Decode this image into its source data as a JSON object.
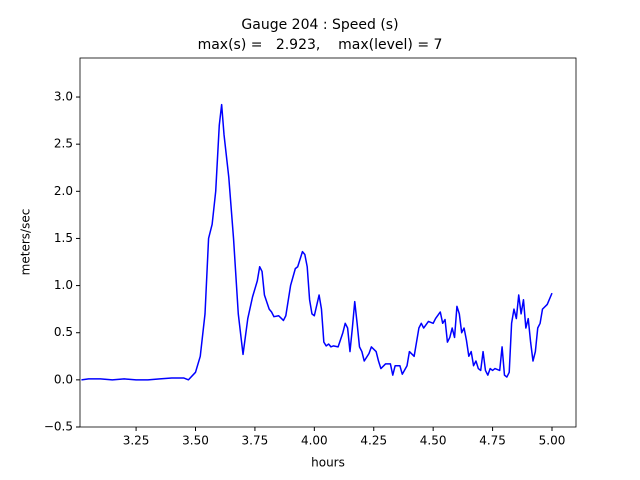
{
  "chart_data": {
    "type": "line",
    "title": "Gauge 204 : Speed (s)",
    "subtitle": "max(s) =   2.923,    max(level) = 7",
    "x_label": "hours",
    "y_label": "meters/sec",
    "xlim": [
      3.014,
      5.101
    ],
    "ylim": [
      -0.5,
      3.414
    ],
    "xticks": [
      {
        "value": 3.25,
        "label": "3.25"
      },
      {
        "value": 3.5,
        "label": "3.50"
      },
      {
        "value": 3.75,
        "label": "3.75"
      },
      {
        "value": 4,
        "label": "4.00"
      },
      {
        "value": 4.25,
        "label": "4.25"
      },
      {
        "value": 4.5,
        "label": "4.50"
      },
      {
        "value": 4.75,
        "label": "4.75"
      },
      {
        "value": 5,
        "label": "5.00"
      }
    ],
    "yticks": [
      {
        "value": -0.5,
        "label": "−0.5"
      },
      {
        "value": 0,
        "label": "0.0"
      },
      {
        "value": 0.5,
        "label": "0.5"
      },
      {
        "value": 1,
        "label": "1.0"
      },
      {
        "value": 1.5,
        "label": "1.5"
      },
      {
        "value": 2,
        "label": "2.0"
      },
      {
        "value": 2.5,
        "label": "2.5"
      },
      {
        "value": 3,
        "label": "3.0"
      }
    ],
    "grid": false,
    "series": [
      {
        "color": "#0000ff",
        "x": [
          3.02,
          3.05,
          3.1,
          3.15,
          3.2,
          3.25,
          3.3,
          3.35,
          3.4,
          3.45,
          3.47,
          3.5,
          3.52,
          3.54,
          3.555,
          3.57,
          3.585,
          3.6,
          3.61,
          3.62,
          3.64,
          3.66,
          3.68,
          3.7,
          3.72,
          3.74,
          3.76,
          3.77,
          3.78,
          3.79,
          3.81,
          3.82,
          3.83,
          3.85,
          3.87,
          3.88,
          3.9,
          3.92,
          3.93,
          3.95,
          3.96,
          3.97,
          3.98,
          3.99,
          4.0,
          4.02,
          4.03,
          4.04,
          4.05,
          4.06,
          4.07,
          4.08,
          4.1,
          4.12,
          4.13,
          4.14,
          4.15,
          4.16,
          4.17,
          4.18,
          4.19,
          4.2,
          4.21,
          4.23,
          4.24,
          4.26,
          4.27,
          4.28,
          4.3,
          4.32,
          4.33,
          4.34,
          4.36,
          4.37,
          4.39,
          4.4,
          4.42,
          4.44,
          4.45,
          4.46,
          4.48,
          4.5,
          4.51,
          4.53,
          4.54,
          4.55,
          4.56,
          4.57,
          4.58,
          4.59,
          4.6,
          4.61,
          4.62,
          4.63,
          4.64,
          4.65,
          4.66,
          4.67,
          4.68,
          4.69,
          4.7,
          4.71,
          4.72,
          4.73,
          4.74,
          4.75,
          4.76,
          4.78,
          4.79,
          4.8,
          4.81,
          4.82,
          4.83,
          4.84,
          4.85,
          4.86,
          4.87,
          4.88,
          4.89,
          4.9,
          4.91,
          4.92,
          4.93,
          4.94,
          4.95,
          4.96,
          4.98,
          5.0
        ],
        "values": [
          0,
          0.01,
          0.01,
          0,
          0.01,
          0,
          0,
          0.01,
          0.02,
          0.02,
          0,
          0.08,
          0.25,
          0.7,
          1.5,
          1.65,
          2.0,
          2.7,
          2.92,
          2.6,
          2.15,
          1.5,
          0.7,
          0.27,
          0.65,
          0.88,
          1.05,
          1.2,
          1.15,
          0.9,
          0.75,
          0.72,
          0.67,
          0.68,
          0.63,
          0.68,
          1.0,
          1.18,
          1.2,
          1.36,
          1.33,
          1.2,
          0.85,
          0.7,
          0.68,
          0.9,
          0.75,
          0.4,
          0.36,
          0.38,
          0.35,
          0.36,
          0.35,
          0.5,
          0.6,
          0.55,
          0.3,
          0.55,
          0.83,
          0.6,
          0.35,
          0.3,
          0.2,
          0.28,
          0.35,
          0.3,
          0.2,
          0.12,
          0.17,
          0.17,
          0.05,
          0.15,
          0.15,
          0.06,
          0.15,
          0.3,
          0.25,
          0.55,
          0.6,
          0.55,
          0.62,
          0.6,
          0.65,
          0.72,
          0.6,
          0.64,
          0.4,
          0.45,
          0.55,
          0.45,
          0.78,
          0.7,
          0.5,
          0.55,
          0.42,
          0.25,
          0.3,
          0.15,
          0.2,
          0.12,
          0.1,
          0.3,
          0.1,
          0.05,
          0.12,
          0.1,
          0.12,
          0.1,
          0.35,
          0.05,
          0.03,
          0.08,
          0.6,
          0.75,
          0.65,
          0.9,
          0.7,
          0.85,
          0.55,
          0.65,
          0.4,
          0.2,
          0.3,
          0.55,
          0.6,
          0.75,
          0.8,
          0.92
        ]
      }
    ]
  }
}
